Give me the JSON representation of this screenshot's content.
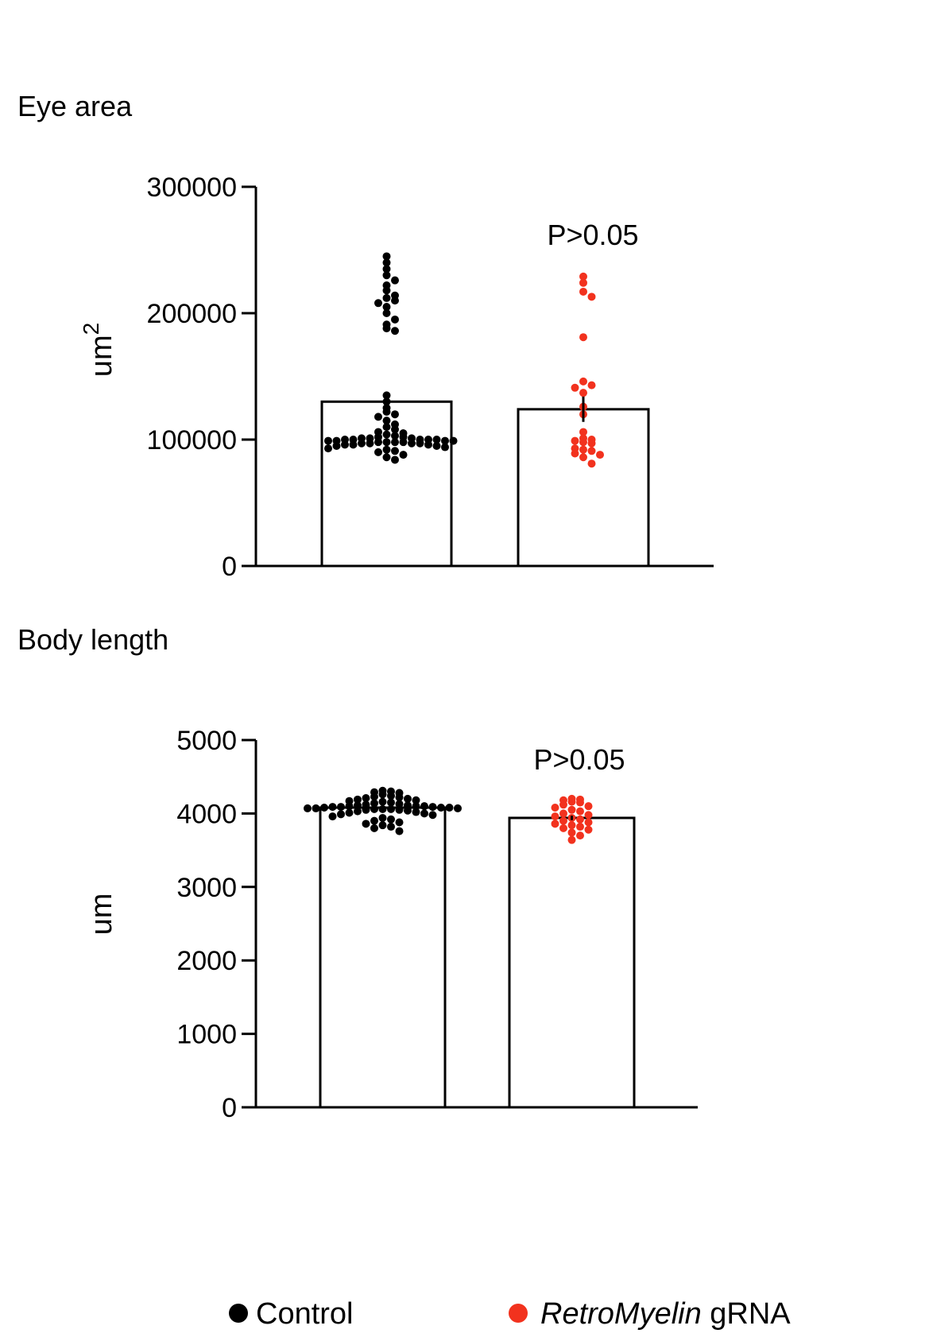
{
  "legend": {
    "items": [
      {
        "label_prefix": "",
        "label_italic": "",
        "label_plain": "Control",
        "color": "#000000"
      },
      {
        "label_prefix": "",
        "label_italic": "RetroMyelin",
        "label_plain": " gRNA",
        "color": "#f2321e"
      }
    ]
  },
  "colors": {
    "control": "#000000",
    "treatment": "#f2321e",
    "axis": "#000000",
    "bar_fill": "#ffffff"
  },
  "chart_data": [
    {
      "type": "bar",
      "title": "Eye area",
      "ylabel": "um",
      "ylabel_superscript": "2",
      "ylim": [
        0,
        300000
      ],
      "yticks": [
        "0",
        "100000",
        "200000",
        "300000"
      ],
      "ytick_values": [
        0,
        100000,
        200000,
        300000
      ],
      "categories": [
        "Control",
        "RetroMyelin gRNA"
      ],
      "values": [
        130000,
        124000
      ],
      "error": [
        4000,
        10000
      ],
      "annotation": "P>0.05",
      "scatter_overlay": true,
      "series": [
        {
          "name": "Control",
          "color": "#000000",
          "points": [
            245000,
            240000,
            235000,
            230000,
            226000,
            222000,
            218000,
            214000,
            212000,
            210000,
            208000,
            205000,
            200000,
            195000,
            191000,
            188000,
            186000,
            135000,
            130000,
            125000,
            122000,
            120000,
            118000,
            115000,
            112000,
            110000,
            108000,
            106000,
            105000,
            104000,
            103000,
            102000,
            102000,
            101000,
            101000,
            100000,
            100000,
            100000,
            99000,
            99000,
            99000,
            98000,
            98000,
            98000,
            97000,
            97000,
            97000,
            96000,
            96000,
            95000,
            95000,
            94000,
            93000,
            92000,
            91000,
            90000,
            88000,
            86000,
            84000,
            100000,
            101000,
            98000,
            97000,
            99000,
            96000,
            100000
          ]
        },
        {
          "name": "RetroMyelin gRNA",
          "color": "#f2321e",
          "points": [
            229000,
            224000,
            217000,
            213000,
            181000,
            146000,
            143000,
            141000,
            137000,
            126000,
            120000,
            106000,
            101000,
            100000,
            99000,
            98000,
            97000,
            93000,
            92000,
            91000,
            89000,
            88000,
            86000,
            81000
          ]
        }
      ]
    },
    {
      "type": "bar",
      "title": "Body length",
      "ylabel": "um",
      "ylabel_superscript": "",
      "ylim": [
        0,
        5000
      ],
      "yticks": [
        "0",
        "1000",
        "2000",
        "3000",
        "4000",
        "5000"
      ],
      "ytick_values": [
        0,
        1000,
        2000,
        3000,
        4000,
        5000
      ],
      "categories": [
        "Control",
        "RetroMyelin gRNA"
      ],
      "values": [
        4080,
        3940
      ],
      "error": [
        15,
        30
      ],
      "annotation": "P>0.05",
      "scatter_overlay": true,
      "series": [
        {
          "name": "Control",
          "color": "#000000",
          "points": [
            4310,
            4300,
            4290,
            4280,
            4260,
            4240,
            4230,
            4220,
            4210,
            4200,
            4190,
            4180,
            4170,
            4160,
            4150,
            4140,
            4130,
            4120,
            4110,
            4100,
            4100,
            4090,
            4090,
            4080,
            4080,
            4070,
            4070,
            4060,
            4060,
            4050,
            4050,
            4040,
            4030,
            4020,
            4010,
            4000,
            3990,
            3980,
            3960,
            3940,
            3920,
            3900,
            3880,
            3860,
            3840,
            3820,
            3800,
            3760,
            4100,
            4080,
            4090,
            4070,
            4110,
            4060
          ]
        },
        {
          "name": "RetroMyelin gRNA",
          "color": "#f2321e",
          "points": [
            4200,
            4190,
            4180,
            4160,
            4150,
            4120,
            4100,
            4080,
            4050,
            4030,
            4000,
            3980,
            3960,
            3940,
            3920,
            3900,
            3880,
            3860,
            3840,
            3820,
            3800,
            3780,
            3740,
            3700,
            3640
          ]
        }
      ]
    }
  ]
}
